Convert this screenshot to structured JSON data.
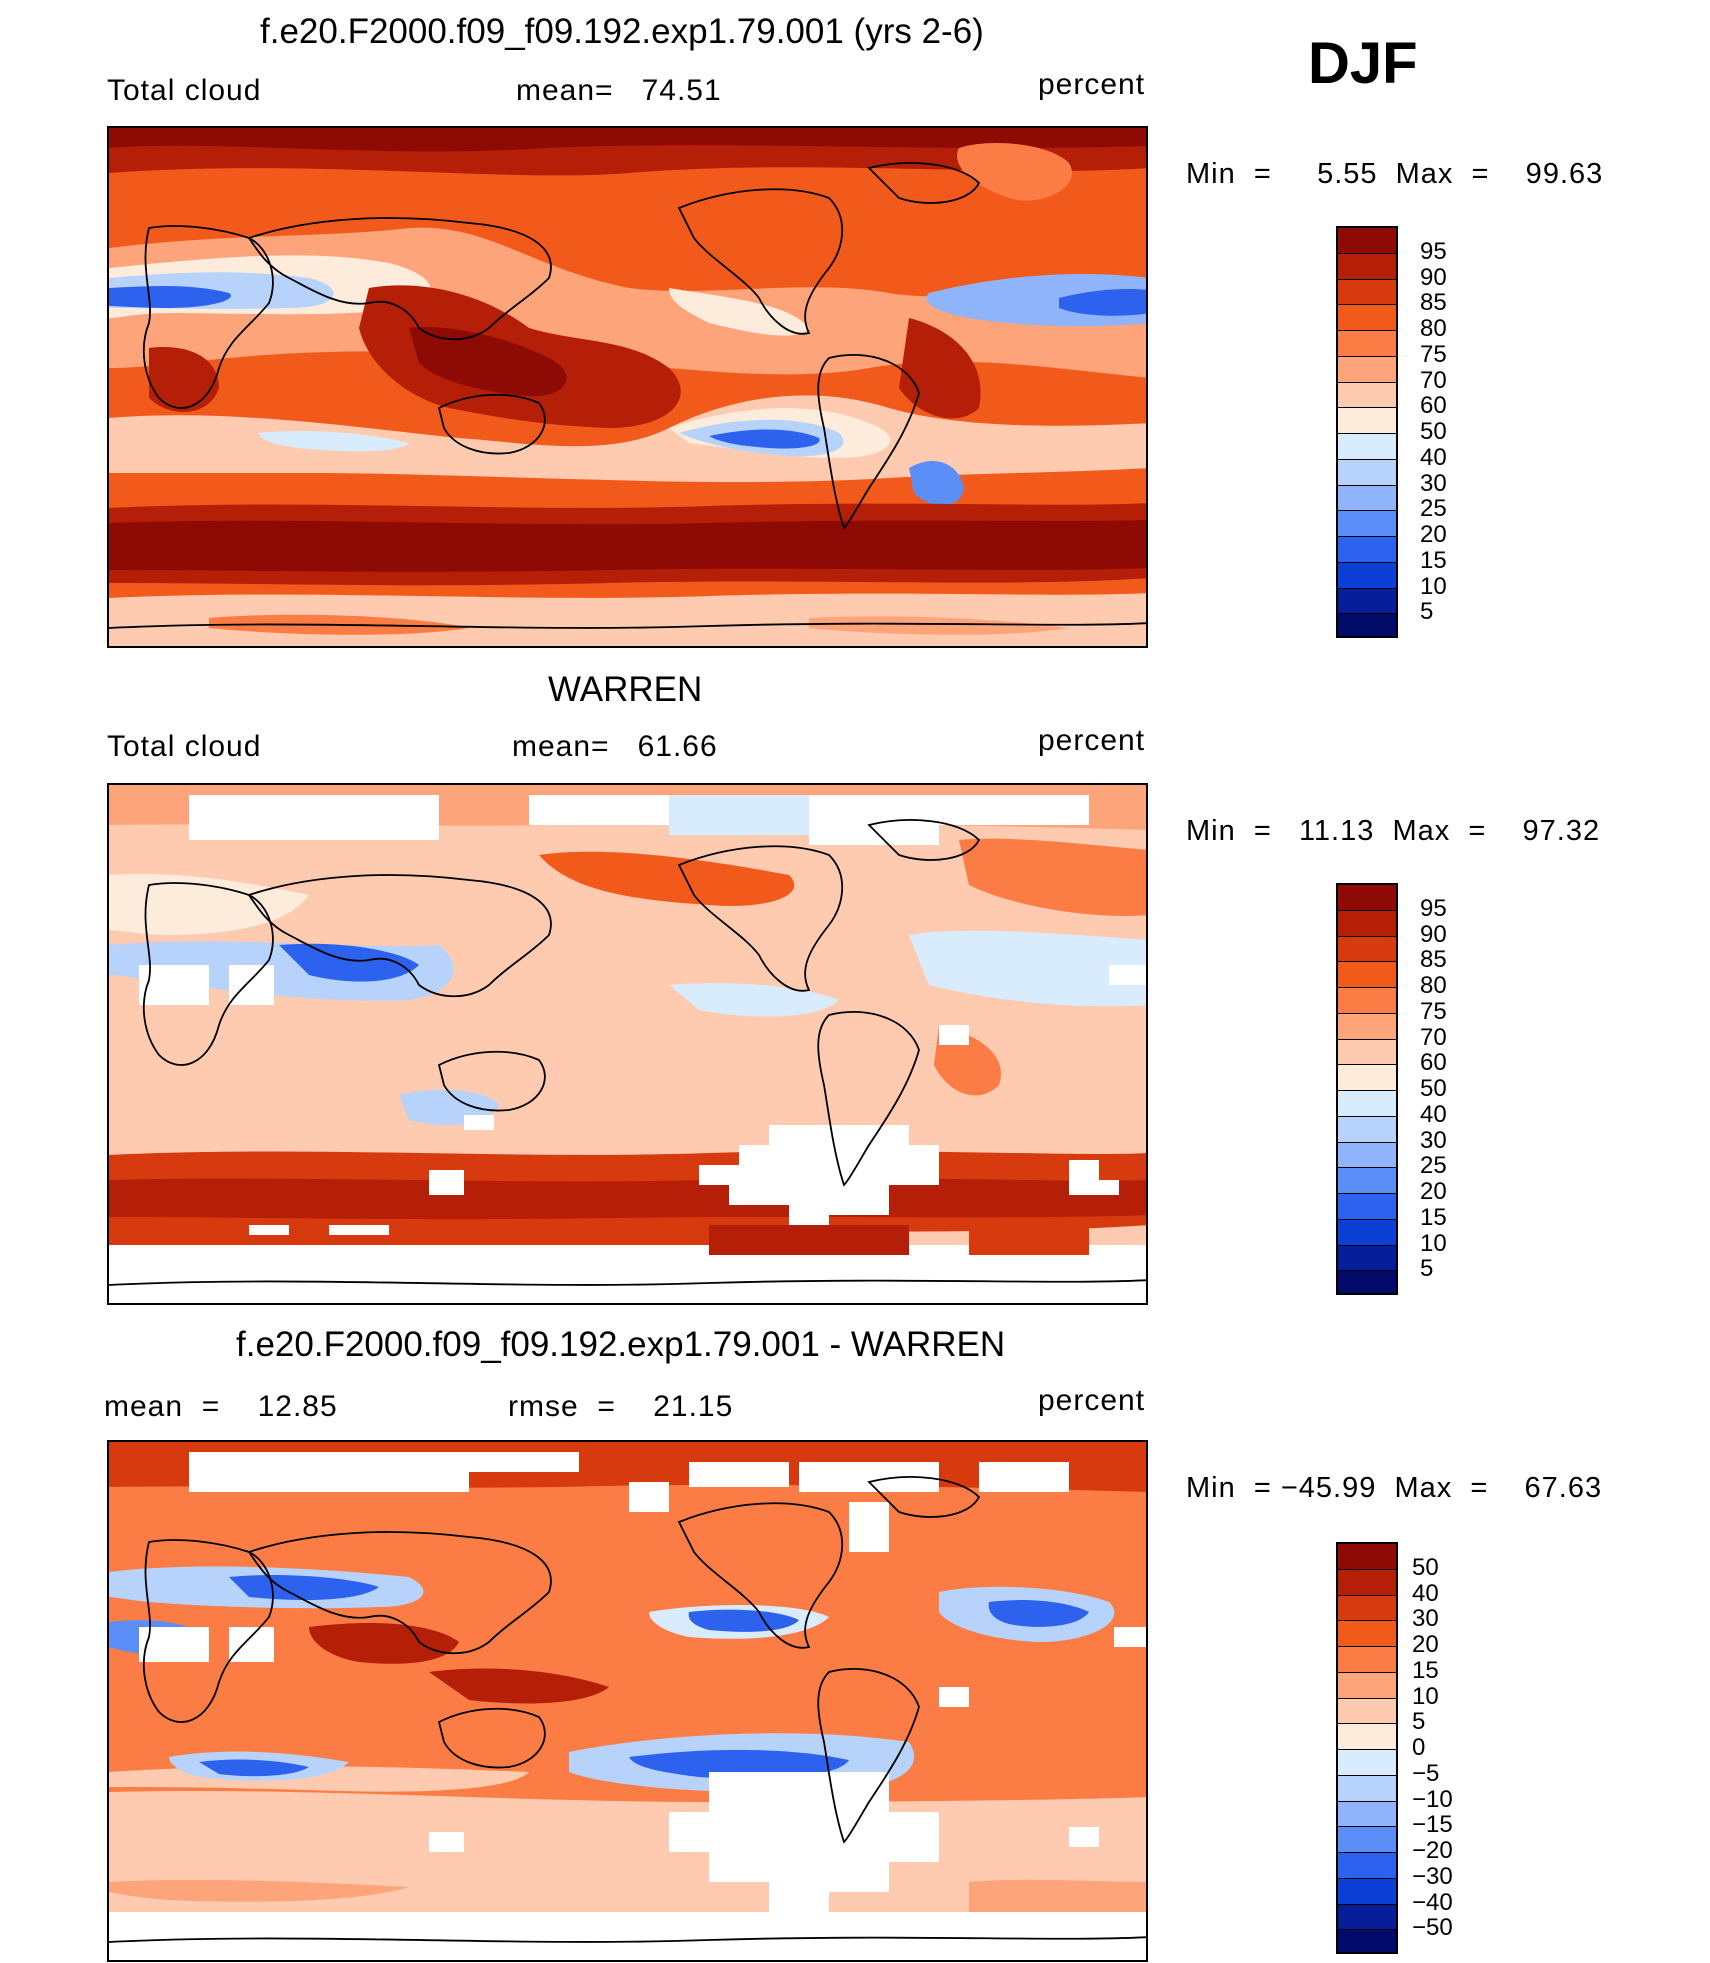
{
  "season": "DJF",
  "panels": [
    {
      "title": "f.e20.F2000.f09_f09.192.exp1.79.001 (yrs 2-6)",
      "left_label": "Total cloud",
      "stat1": "mean=   74.51",
      "stat2": "",
      "units": "percent",
      "minmax": "Min  =     5.55  Max  =    99.63",
      "colorbar": {
        "labels": [
          "95",
          "90",
          "85",
          "80",
          "75",
          "70",
          "60",
          "50",
          "40",
          "30",
          "25",
          "20",
          "15",
          "10",
          "5"
        ],
        "colors": [
          "#8e0a05",
          "#b51f07",
          "#d83a0f",
          "#f25a1c",
          "#fb7d45",
          "#fda47b",
          "#fecab0",
          "#fdebdc",
          "#d9ecfd",
          "#b7d3fc",
          "#8fb4fb",
          "#5b8ef6",
          "#2d62ee",
          "#0c3fd6",
          "#061f99",
          "#020a6a"
        ]
      }
    },
    {
      "title": "WARREN",
      "left_label": "Total cloud",
      "stat1": "mean=   61.66",
      "stat2": "",
      "units": "percent",
      "minmax": "Min  =   11.13  Max  =    97.32",
      "colorbar": {
        "labels": [
          "95",
          "90",
          "85",
          "80",
          "75",
          "70",
          "60",
          "50",
          "40",
          "30",
          "25",
          "20",
          "15",
          "10",
          "5"
        ],
        "colors": [
          "#8e0a05",
          "#b51f07",
          "#d83a0f",
          "#f25a1c",
          "#fb7d45",
          "#fda47b",
          "#fecab0",
          "#fdebdc",
          "#d9ecfd",
          "#b7d3fc",
          "#8fb4fb",
          "#5b8ef6",
          "#2d62ee",
          "#0c3fd6",
          "#061f99",
          "#020a6a"
        ]
      }
    },
    {
      "title": "f.e20.F2000.f09_f09.192.exp1.79.001 - WARREN",
      "left_label": "mean  =    12.85",
      "stat1": "",
      "stat2": "rmse  =    21.15",
      "units": "percent",
      "minmax": "Min  = −45.99  Max  =    67.63",
      "colorbar": {
        "labels": [
          "50",
          "40",
          "30",
          "20",
          "15",
          "10",
          "5",
          "0",
          "−5",
          "−10",
          "−15",
          "−20",
          "−30",
          "−40",
          "−50"
        ],
        "colors": [
          "#8e0a05",
          "#b51f07",
          "#d83a0f",
          "#f25a1c",
          "#fb7d45",
          "#fda47b",
          "#fecab0",
          "#fdebdc",
          "#d9ecfd",
          "#b7d3fc",
          "#8fb4fb",
          "#5b8ef6",
          "#2d62ee",
          "#0c3fd6",
          "#061f99",
          "#020a6a"
        ]
      }
    }
  ]
}
